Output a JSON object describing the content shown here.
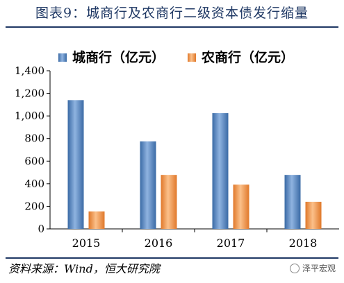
{
  "header": {
    "title": "图表9：城商行及农商行二级资本债发行缩量"
  },
  "footer": {
    "source": "资料来源：Wind，恒大研究院",
    "brand": "泽平宏观"
  },
  "colors": {
    "city": "#4f81bd",
    "rural": "#f79646",
    "title": "#1f3864"
  },
  "chart_data": {
    "type": "bar",
    "categories": [
      "2015",
      "2016",
      "2017",
      "2018"
    ],
    "series": [
      {
        "name": "城商行（亿元）",
        "values": [
          1140,
          775,
          1025,
          478
        ]
      },
      {
        "name": "农商行（亿元）",
        "values": [
          155,
          478,
          392,
          240
        ]
      }
    ],
    "ylim": [
      0,
      1400
    ],
    "yticks": [
      0,
      200,
      400,
      600,
      800,
      1000,
      1200,
      1400
    ],
    "ytick_labels": [
      "0",
      "200",
      "400",
      "600",
      "800",
      "1,000",
      "1,200",
      "1,400"
    ],
    "legend": "top",
    "grid": false
  }
}
